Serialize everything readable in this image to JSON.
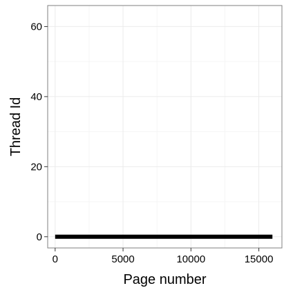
{
  "chart_data": {
    "type": "line",
    "title": "",
    "xlabel": "Page number",
    "ylabel": "Thread Id",
    "xlim": [
      -550,
      16700
    ],
    "ylim": [
      -3.2,
      66
    ],
    "x_ticks": [
      0,
      5000,
      10000,
      15000
    ],
    "x_tick_labels": [
      "0",
      "5000",
      "10000",
      "15000"
    ],
    "x_minor_ticks": [
      2500,
      7500,
      12500
    ],
    "y_ticks": [
      0,
      20,
      40,
      60
    ],
    "y_tick_labels": [
      "0",
      "20",
      "40",
      "60"
    ],
    "y_minor_ticks": [
      10,
      30,
      50
    ],
    "grid": true,
    "legend": "none",
    "series": [
      {
        "x": [
          0,
          16000
        ],
        "y": [
          0,
          0
        ]
      }
    ],
    "colors": {
      "line": "#000000",
      "panel_border": "#7f7f7f",
      "grid_major": "#ebebeb",
      "grid_minor": "#f5f5f5",
      "tick": "#333333"
    }
  }
}
